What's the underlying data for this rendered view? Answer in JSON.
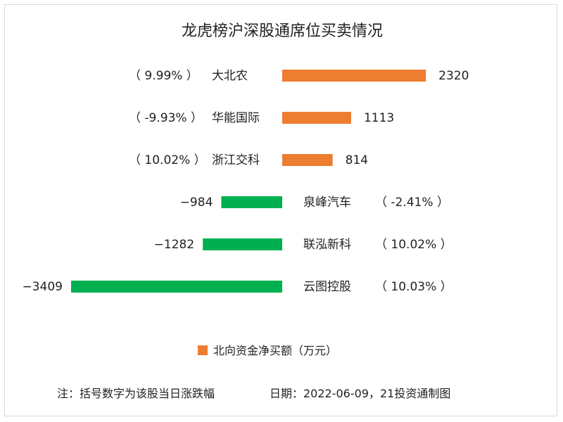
{
  "chart_data": {
    "type": "bar",
    "orientation": "horizontal",
    "title": "龙虎榜沪深股通席位买卖情况",
    "categories": [
      "大北农",
      "华能国际",
      "浙江交科",
      "泉峰汽车",
      "联泓新科",
      "云图控股"
    ],
    "change_labels": [
      "（ 9.99% ）",
      "（ -9.93% ）",
      "（ 10.02% ）",
      "（ -2.41% ）",
      "（ 10.02% ）",
      "（ 10.03% ）"
    ],
    "series": [
      {
        "name": "北向资金净买额（万元）",
        "values": [
          2320,
          1113,
          814,
          -984,
          -1282,
          -3409
        ]
      }
    ],
    "colors": {
      "positive": "#ed7d31",
      "negative": "#00b050"
    },
    "legend_position": "bottom",
    "grid": false
  },
  "footer": {
    "note": "注：括号数字为该股当日涨跌幅",
    "date": "日期：2022-06-09，21投资通制图"
  }
}
